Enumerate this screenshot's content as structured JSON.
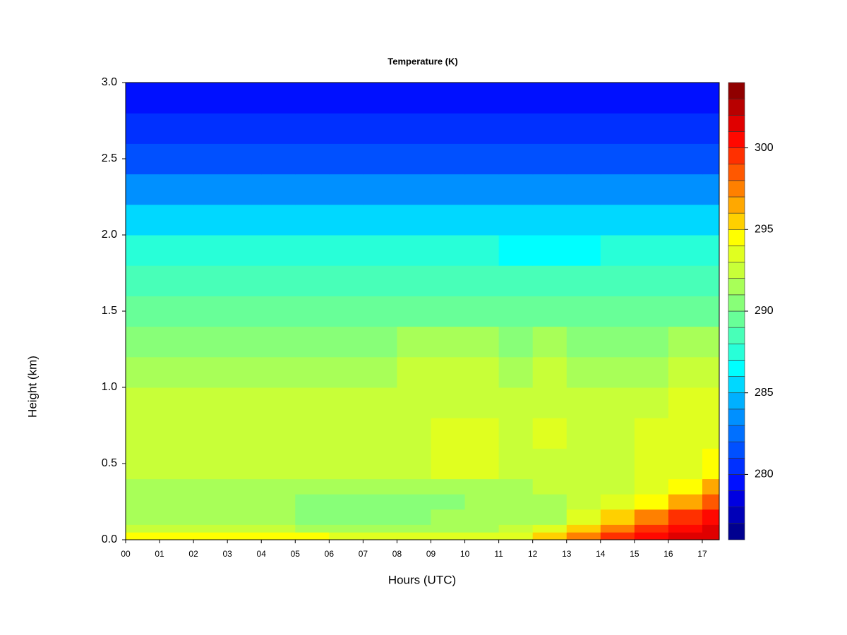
{
  "chart_data": {
    "type": "heatmap",
    "title": "Temperature (K)",
    "xlabel": "Hours (UTC)",
    "ylabel": "Height (km)",
    "xlim": [
      0,
      17.5
    ],
    "xticks": [
      {
        "value": 0,
        "label": "00"
      },
      {
        "value": 1,
        "label": "01"
      },
      {
        "value": 2,
        "label": "02"
      },
      {
        "value": 3,
        "label": "03"
      },
      {
        "value": 4,
        "label": "04"
      },
      {
        "value": 5,
        "label": "05"
      },
      {
        "value": 6,
        "label": "06"
      },
      {
        "value": 7,
        "label": "07"
      },
      {
        "value": 8,
        "label": "08"
      },
      {
        "value": 9,
        "label": "09"
      },
      {
        "value": 10,
        "label": "10"
      },
      {
        "value": 11,
        "label": "11"
      },
      {
        "value": 12,
        "label": "12"
      },
      {
        "value": 13,
        "label": "13"
      },
      {
        "value": 14,
        "label": "14"
      },
      {
        "value": 15,
        "label": "15"
      },
      {
        "value": 16,
        "label": "16"
      },
      {
        "value": 17,
        "label": "17"
      }
    ],
    "ylim": [
      0,
      3
    ],
    "yticks": [
      {
        "value": 0,
        "label": "0.0"
      },
      {
        "value": 0.5,
        "label": "0.5"
      },
      {
        "value": 1,
        "label": "1.0"
      },
      {
        "value": 1.5,
        "label": "1.5"
      },
      {
        "value": 2,
        "label": "2.0"
      },
      {
        "value": 2.5,
        "label": "2.5"
      },
      {
        "value": 3,
        "label": "3.0"
      }
    ],
    "x_edges": [
      0,
      1,
      2,
      3,
      4,
      5,
      6,
      7,
      8,
      9,
      10,
      11,
      12,
      13,
      14,
      15,
      16,
      17,
      17.5
    ],
    "y_edges": [
      0,
      0.05,
      0.1,
      0.2,
      0.3,
      0.4,
      0.6,
      0.8,
      1.0,
      1.2,
      1.4,
      1.6,
      1.8,
      2.0,
      2.2,
      2.4,
      2.6,
      2.8,
      3.0
    ],
    "values": [
      [
        294,
        294,
        294,
        294,
        294,
        294,
        293.5,
        293.5,
        293.5,
        293.5,
        293.5,
        293.5,
        295,
        297,
        299,
        300,
        301,
        301
      ],
      [
        292,
        292,
        292,
        292,
        292,
        291.5,
        291.5,
        291.5,
        291.5,
        291.5,
        291.5,
        292,
        293,
        295,
        297,
        299,
        300,
        301
      ],
      [
        291,
        291,
        291,
        291,
        291,
        290.5,
        290.5,
        290.5,
        290.5,
        291,
        291,
        291,
        291.5,
        293,
        295,
        297,
        299,
        300
      ],
      [
        291,
        291,
        291,
        291,
        291,
        290.5,
        290,
        290,
        290,
        290.5,
        291,
        291,
        291,
        292,
        293,
        294,
        296,
        298
      ],
      [
        291.5,
        291.5,
        291.5,
        291.5,
        291.5,
        291,
        291,
        291,
        291,
        291.5,
        291.5,
        291.5,
        292,
        292,
        292.5,
        293,
        294,
        296
      ],
      [
        292.5,
        292,
        292,
        292,
        292,
        292,
        292,
        292,
        292.5,
        293,
        293,
        292.5,
        292.5,
        292.5,
        292.5,
        293,
        293,
        294
      ],
      [
        292.5,
        292,
        292,
        292,
        292,
        292,
        292,
        292.5,
        292.5,
        293,
        293,
        292.5,
        293,
        292.5,
        292.5,
        293,
        293,
        293.5
      ],
      [
        292,
        292,
        292,
        292,
        292,
        292,
        292,
        292,
        292.5,
        292.5,
        292.5,
        292.5,
        292.5,
        292.5,
        292.5,
        292.5,
        293,
        293
      ],
      [
        291.5,
        291.5,
        291.5,
        291.5,
        291.5,
        291.5,
        291.5,
        291.5,
        292,
        292,
        292,
        291.5,
        292,
        291.5,
        291.5,
        291.5,
        292,
        292
      ],
      [
        290.5,
        290.5,
        290.5,
        290.5,
        290.5,
        290.5,
        290.5,
        290.5,
        291,
        291,
        291,
        290.5,
        291,
        290.5,
        290.5,
        290.5,
        291,
        291
      ],
      [
        289.5,
        289.5,
        289.5,
        289.5,
        289.5,
        289.5,
        289.5,
        289.5,
        289.5,
        289.5,
        289.5,
        289.5,
        289.5,
        289.5,
        289.5,
        289.5,
        289.5,
        289.5
      ],
      [
        288,
        288,
        288,
        288,
        288,
        288,
        288,
        288,
        288,
        288,
        288,
        288,
        288,
        288,
        288,
        288,
        288,
        288
      ],
      [
        287,
        287,
        287,
        287,
        287,
        287,
        287,
        287,
        287,
        287,
        287,
        286.5,
        286.5,
        286.5,
        287,
        287,
        287,
        287
      ],
      [
        285.5,
        285.5,
        285.5,
        285.5,
        285.5,
        285.5,
        285.5,
        285.5,
        285.5,
        285.5,
        285.5,
        285.5,
        285.5,
        285.5,
        285.5,
        285.5,
        285.5,
        285.5
      ],
      [
        283.5,
        283.5,
        283.5,
        283.5,
        283.5,
        283.5,
        283.5,
        283.5,
        283.5,
        283.5,
        283.5,
        283.5,
        283.5,
        283.5,
        283.5,
        283.5,
        283.5,
        283.5
      ],
      [
        281.5,
        281.5,
        281.5,
        281.5,
        281.5,
        281.5,
        281.5,
        281.5,
        281.5,
        281.5,
        281.5,
        281.5,
        281.5,
        281.5,
        281.5,
        281.5,
        281.5,
        281.5
      ],
      [
        280,
        280,
        280,
        280,
        280,
        280,
        280,
        280,
        280,
        280,
        280,
        280,
        280,
        280,
        280,
        280,
        280,
        280
      ],
      [
        279,
        279,
        279,
        279,
        279,
        279,
        279,
        279,
        279,
        279,
        279,
        279,
        279,
        279,
        279,
        279,
        279,
        279
      ]
    ],
    "colorbar": {
      "lim": [
        276,
        304
      ],
      "ticks": [
        280,
        285,
        290,
        295,
        300
      ],
      "colors": [
        "#000090",
        "#0000b8",
        "#0000e0",
        "#0010ff",
        "#0030ff",
        "#0050ff",
        "#0070ff",
        "#0090ff",
        "#00b0ff",
        "#00d8ff",
        "#00ffff",
        "#28ffd8",
        "#48ffb8",
        "#68ff98",
        "#88ff78",
        "#a8ff58",
        "#c8ff38",
        "#e0ff20",
        "#ffff00",
        "#ffd000",
        "#ffa800",
        "#ff8000",
        "#ff5800",
        "#ff3000",
        "#ff0800",
        "#e00000",
        "#b80000",
        "#900000"
      ]
    }
  }
}
